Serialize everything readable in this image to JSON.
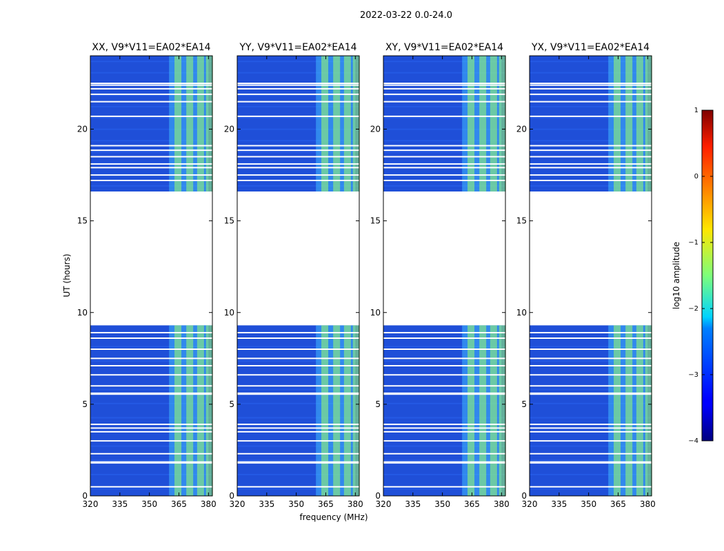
{
  "chart_data": {
    "type": "heatmap",
    "title": "2022-03-22 0.0-24.0",
    "xlabel": "frequency (MHz)",
    "ylabel": "UT (hours)",
    "xlim": [
      320,
      382
    ],
    "ylim": [
      0,
      24
    ],
    "x_ticks": [
      "320",
      "335",
      "350",
      "365",
      "380"
    ],
    "y_ticks": [
      "0",
      "5",
      "10",
      "15",
      "20"
    ],
    "x_tick_values": [
      320,
      335,
      350,
      365,
      380
    ],
    "y_tick_values": [
      0,
      5,
      10,
      15,
      20
    ],
    "panels": [
      {
        "title": "XX, V9*V11=EA02*EA14"
      },
      {
        "title": "YY, V9*V11=EA02*EA14"
      },
      {
        "title": "XY, V9*V11=EA02*EA14"
      },
      {
        "title": "YX, V9*V11=EA02*EA14"
      }
    ],
    "data_segments_ut": [
      [
        0,
        9.3
      ],
      [
        16.6,
        24
      ]
    ],
    "rfi_band_mhz": [
      360,
      380
    ],
    "rfi_channels_mhz": [
      364.5,
      370.5,
      376,
      380.5
    ],
    "colorbar": {
      "label": "log10 amplitude",
      "range": [
        -4,
        1
      ],
      "ticks": [
        "1",
        "0",
        "−1",
        "−2",
        "−3",
        "−4"
      ],
      "tick_values": [
        1,
        0,
        -1,
        -2,
        -3,
        -4
      ],
      "colormap": "jet"
    }
  }
}
